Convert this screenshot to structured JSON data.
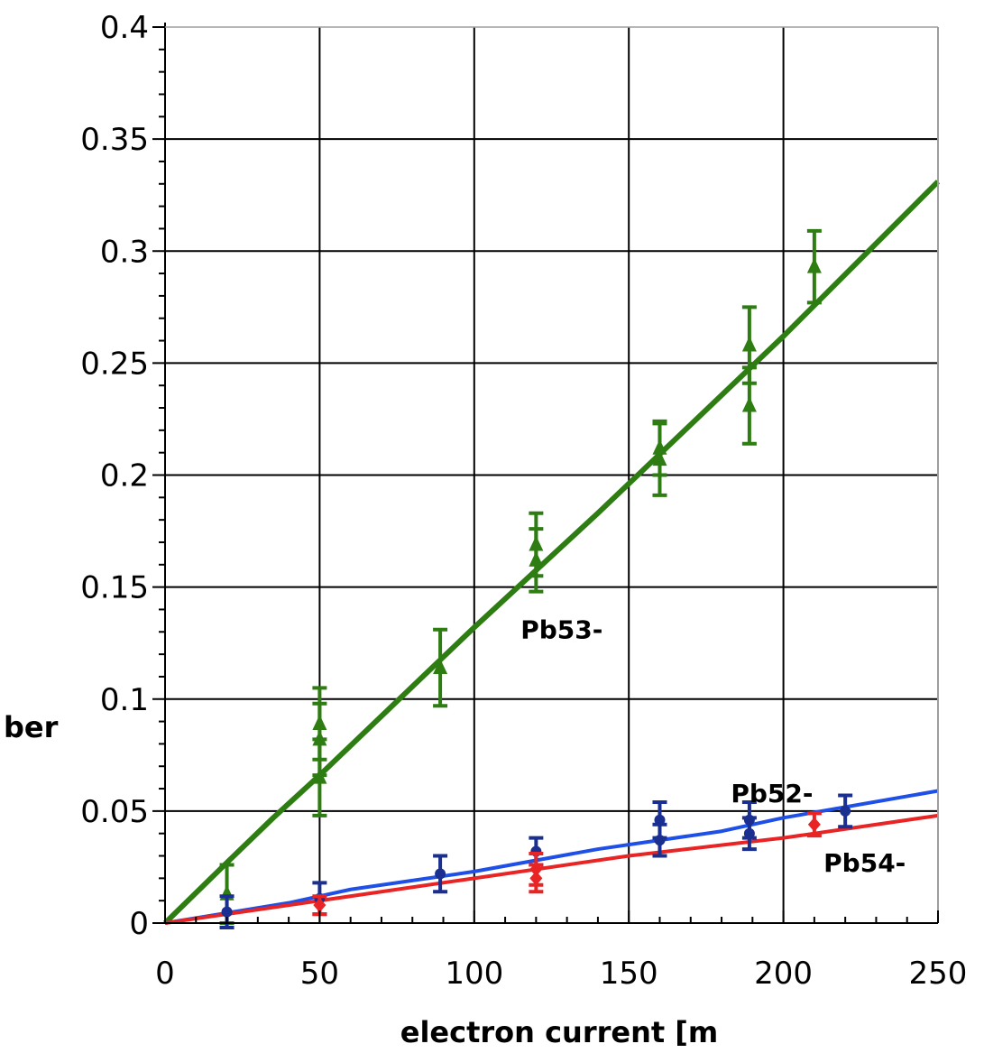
{
  "chart_data": {
    "type": "scatter",
    "title": "",
    "xlabel": "electron  current  [m",
    "ylabel": "ber",
    "xlim": [
      0,
      250
    ],
    "ylim": [
      0,
      0.4
    ],
    "x_ticks": [
      "0",
      "50",
      "100",
      "150",
      "200",
      "250"
    ],
    "y_ticks": [
      "0",
      "0.05",
      "0.1",
      "0.15",
      "0.2",
      "0.25",
      "0.3",
      "0.35",
      "0.4"
    ],
    "grid": true,
    "series": [
      {
        "name": "Pb53-",
        "color": "#2e7d12",
        "marker": "triangle",
        "points": [
          {
            "x": 20,
            "y": 0.013,
            "err": 0.013
          },
          {
            "x": 50,
            "y": 0.089,
            "err": 0.016
          },
          {
            "x": 50,
            "y": 0.082,
            "err": 0.016
          },
          {
            "x": 50,
            "y": 0.065,
            "err": 0.017
          },
          {
            "x": 89,
            "y": 0.114,
            "err": 0.017
          },
          {
            "x": 120,
            "y": 0.169,
            "err": 0.014
          },
          {
            "x": 120,
            "y": 0.162,
            "err": 0.014
          },
          {
            "x": 160,
            "y": 0.207,
            "err": 0.016
          },
          {
            "x": 160,
            "y": 0.212,
            "err": 0.012
          },
          {
            "x": 189,
            "y": 0.258,
            "err": 0.017
          },
          {
            "x": 189,
            "y": 0.231,
            "err": 0.017
          },
          {
            "x": 210,
            "y": 0.293,
            "err": 0.016
          }
        ],
        "fit": {
          "x": [
            0,
            20,
            35,
            50,
            100,
            140,
            200,
            250
          ],
          "y": [
            0,
            0.027,
            0.047,
            0.066,
            0.132,
            0.183,
            0.262,
            0.331
          ]
        }
      },
      {
        "name": "Pb52-",
        "color": "#1a2f8f",
        "line_color": "#1e4fe6",
        "marker": "circle",
        "points": [
          {
            "x": 20,
            "y": 0.005,
            "err": 0.007
          },
          {
            "x": 50,
            "y": 0.011,
            "err": 0.007
          },
          {
            "x": 89,
            "y": 0.022,
            "err": 0.008
          },
          {
            "x": 120,
            "y": 0.032,
            "err": 0.006
          },
          {
            "x": 160,
            "y": 0.046,
            "err": 0.008
          },
          {
            "x": 160,
            "y": 0.037,
            "err": 0.007
          },
          {
            "x": 189,
            "y": 0.046,
            "err": 0.008
          },
          {
            "x": 189,
            "y": 0.04,
            "err": 0.007
          },
          {
            "x": 220,
            "y": 0.05,
            "err": 0.007
          }
        ],
        "fit": {
          "x": [
            0,
            40,
            60,
            100,
            140,
            180,
            200,
            250
          ],
          "y": [
            0,
            0.009,
            0.015,
            0.023,
            0.033,
            0.041,
            0.047,
            0.059
          ]
        }
      },
      {
        "name": "Pb54-",
        "color": "#e82424",
        "marker": "diamond",
        "points": [
          {
            "x": 50,
            "y": 0.008,
            "err": 0.004
          },
          {
            "x": 120,
            "y": 0.024,
            "err": 0.007
          },
          {
            "x": 120,
            "y": 0.02,
            "err": 0.006
          },
          {
            "x": 210,
            "y": 0.044,
            "err": 0.005
          }
        ],
        "fit": {
          "x": [
            0,
            40,
            100,
            150,
            200,
            250
          ],
          "y": [
            0,
            0.008,
            0.02,
            0.03,
            0.038,
            0.048
          ]
        }
      }
    ],
    "annotations": [
      {
        "text": "Pb53-",
        "x": 115,
        "y": 0.127
      },
      {
        "text": "Pb52-",
        "x": 183,
        "y": 0.054
      },
      {
        "text": "Pb54-",
        "x": 213,
        "y": 0.023
      }
    ]
  }
}
